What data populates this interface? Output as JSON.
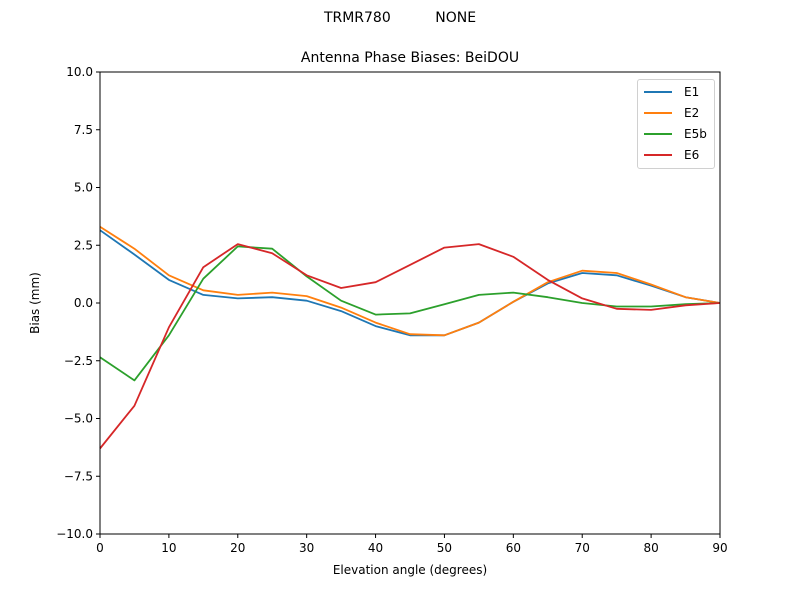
{
  "figure": {
    "suptitle": "TRMR780          NONE",
    "title": "Antenna Phase Biases: BeiDOU"
  },
  "chart_data": {
    "type": "line",
    "title": "Antenna Phase Biases: BeiDOU",
    "suptitle": "TRMR780          NONE",
    "xlabel": "Elevation angle (degrees)",
    "ylabel": "Bias (mm)",
    "xlim": [
      0,
      90
    ],
    "ylim": [
      -10,
      10
    ],
    "xticks": [
      0,
      10,
      20,
      30,
      40,
      50,
      60,
      70,
      80,
      90
    ],
    "xtick_labels": [
      "0",
      "10",
      "20",
      "30",
      "40",
      "50",
      "60",
      "70",
      "80",
      "90"
    ],
    "yticks": [
      -10,
      -7.5,
      -5,
      -2.5,
      0,
      2.5,
      5,
      7.5,
      10
    ],
    "ytick_labels": [
      "−10.0",
      "−7.5",
      "−5.0",
      "−2.5",
      "0.0",
      "2.5",
      "5.0",
      "7.5",
      "10.0"
    ],
    "grid": false,
    "legend_position": "upper right",
    "x": [
      0,
      5,
      10,
      15,
      20,
      25,
      30,
      35,
      40,
      45,
      50,
      55,
      60,
      65,
      70,
      75,
      80,
      85,
      90
    ],
    "series": [
      {
        "name": "E1",
        "color": "#1f77b4",
        "values": [
          3.15,
          2.1,
          1.0,
          0.35,
          0.2,
          0.25,
          0.1,
          -0.35,
          -1.0,
          -1.4,
          -1.4,
          -0.85,
          0.05,
          0.85,
          1.3,
          1.2,
          0.75,
          0.25,
          0.0
        ]
      },
      {
        "name": "E2",
        "color": "#ff7f0e",
        "values": [
          3.3,
          2.35,
          1.2,
          0.55,
          0.35,
          0.45,
          0.3,
          -0.2,
          -0.85,
          -1.35,
          -1.4,
          -0.85,
          0.05,
          0.9,
          1.4,
          1.3,
          0.8,
          0.25,
          0.0
        ]
      },
      {
        "name": "E5b",
        "color": "#2ca02c",
        "values": [
          -2.35,
          -3.35,
          -1.4,
          1.05,
          2.45,
          2.35,
          1.15,
          0.1,
          -0.5,
          -0.45,
          -0.05,
          0.35,
          0.45,
          0.25,
          0.0,
          -0.15,
          -0.15,
          -0.05,
          0.0
        ]
      },
      {
        "name": "E6",
        "color": "#d62728",
        "values": [
          -6.3,
          -4.45,
          -1.05,
          1.55,
          2.55,
          2.15,
          1.2,
          0.65,
          0.9,
          1.65,
          2.4,
          2.55,
          2.0,
          1.0,
          0.2,
          -0.25,
          -0.3,
          -0.1,
          0.0
        ]
      }
    ]
  },
  "legend": {
    "items": [
      {
        "label": "E1",
        "color": "#1f77b4"
      },
      {
        "label": "E2",
        "color": "#ff7f0e"
      },
      {
        "label": "E5b",
        "color": "#2ca02c"
      },
      {
        "label": "E6",
        "color": "#d62728"
      }
    ]
  }
}
